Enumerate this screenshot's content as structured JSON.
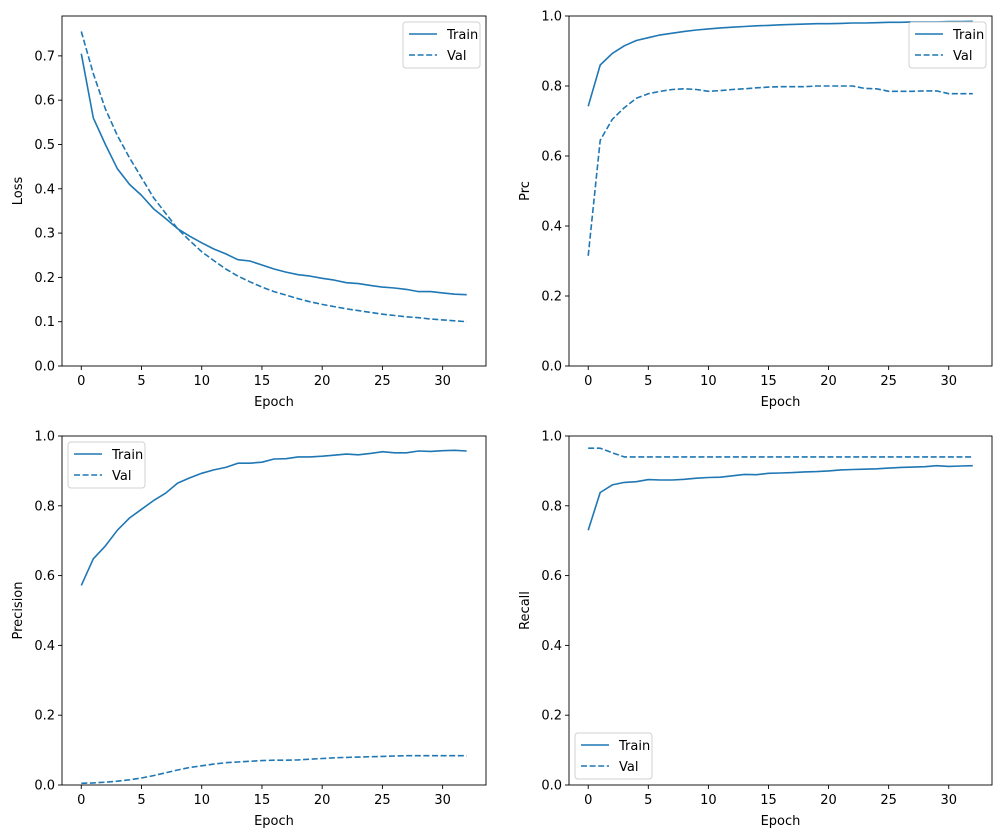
{
  "line_color": "#1f77b4",
  "chart_data": [
    {
      "type": "line",
      "xlabel": "Epoch",
      "ylabel": "Loss",
      "xlim": [
        -1.6,
        33.6
      ],
      "ylim": [
        0,
        0.79
      ],
      "xticks": [
        0,
        5,
        10,
        15,
        20,
        25,
        30
      ],
      "xtick_labels": [
        "0",
        "5",
        "10",
        "15",
        "20",
        "25",
        "30"
      ],
      "yticks": [
        0,
        0.1,
        0.2,
        0.3,
        0.4,
        0.5,
        0.6,
        0.7
      ],
      "ytick_labels": [
        "0.0",
        "0.1",
        "0.2",
        "0.3",
        "0.4",
        "0.5",
        "0.6",
        "0.7"
      ],
      "grid": false,
      "legend": "top-right",
      "series": [
        {
          "name": "Train",
          "style": "solid",
          "values": [
            0.705,
            0.56,
            0.5,
            0.445,
            0.41,
            0.385,
            0.355,
            0.333,
            0.31,
            0.293,
            0.278,
            0.264,
            0.253,
            0.24,
            0.237,
            0.228,
            0.219,
            0.212,
            0.206,
            0.203,
            0.198,
            0.194,
            0.188,
            0.186,
            0.182,
            0.178,
            0.176,
            0.173,
            0.168,
            0.168,
            0.165,
            0.162,
            0.161
          ]
        },
        {
          "name": "Val",
          "style": "dashed",
          "values": [
            0.755,
            0.66,
            0.58,
            0.52,
            0.47,
            0.425,
            0.38,
            0.345,
            0.31,
            0.283,
            0.258,
            0.238,
            0.219,
            0.203,
            0.19,
            0.178,
            0.168,
            0.16,
            0.152,
            0.145,
            0.139,
            0.134,
            0.129,
            0.125,
            0.121,
            0.117,
            0.114,
            0.111,
            0.109,
            0.106,
            0.104,
            0.102,
            0.1
          ]
        }
      ]
    },
    {
      "type": "line",
      "xlabel": "Epoch",
      "ylabel": "Prc",
      "xlim": [
        -1.6,
        33.6
      ],
      "ylim": [
        0,
        1
      ],
      "xticks": [
        0,
        5,
        10,
        15,
        20,
        25,
        30
      ],
      "xtick_labels": [
        "0",
        "5",
        "10",
        "15",
        "20",
        "25",
        "30"
      ],
      "yticks": [
        0,
        0.2,
        0.4,
        0.6,
        0.8,
        1.0
      ],
      "ytick_labels": [
        "0.0",
        "0.2",
        "0.4",
        "0.6",
        "0.8",
        "1.0"
      ],
      "grid": false,
      "legend": "top-right",
      "series": [
        {
          "name": "Train",
          "style": "solid",
          "values": [
            0.742,
            0.86,
            0.893,
            0.915,
            0.93,
            0.938,
            0.946,
            0.951,
            0.956,
            0.96,
            0.963,
            0.966,
            0.968,
            0.97,
            0.972,
            0.973,
            0.975,
            0.976,
            0.977,
            0.978,
            0.978,
            0.979,
            0.98,
            0.98,
            0.981,
            0.982,
            0.982,
            0.983,
            0.983,
            0.983,
            0.984,
            0.984,
            0.985
          ]
        },
        {
          "name": "Val",
          "style": "dashed",
          "values": [
            0.315,
            0.645,
            0.705,
            0.738,
            0.765,
            0.778,
            0.785,
            0.79,
            0.792,
            0.79,
            0.785,
            0.787,
            0.79,
            0.792,
            0.795,
            0.797,
            0.798,
            0.798,
            0.798,
            0.8,
            0.8,
            0.8,
            0.8,
            0.793,
            0.792,
            0.785,
            0.785,
            0.785,
            0.786,
            0.786,
            0.778,
            0.778,
            0.778
          ]
        }
      ]
    },
    {
      "type": "line",
      "xlabel": "Epoch",
      "ylabel": "Precision",
      "xlim": [
        -1.6,
        33.6
      ],
      "ylim": [
        0,
        1
      ],
      "xticks": [
        0,
        5,
        10,
        15,
        20,
        25,
        30
      ],
      "xtick_labels": [
        "0",
        "5",
        "10",
        "15",
        "20",
        "25",
        "30"
      ],
      "yticks": [
        0,
        0.2,
        0.4,
        0.6,
        0.8,
        1.0
      ],
      "ytick_labels": [
        "0.0",
        "0.2",
        "0.4",
        "0.6",
        "0.8",
        "1.0"
      ],
      "grid": false,
      "legend": "top-left",
      "series": [
        {
          "name": "Train",
          "style": "solid",
          "values": [
            0.572,
            0.648,
            0.685,
            0.73,
            0.765,
            0.79,
            0.815,
            0.836,
            0.865,
            0.88,
            0.893,
            0.903,
            0.91,
            0.922,
            0.922,
            0.925,
            0.934,
            0.935,
            0.94,
            0.94,
            0.942,
            0.945,
            0.948,
            0.946,
            0.95,
            0.955,
            0.952,
            0.952,
            0.957,
            0.956,
            0.958,
            0.959,
            0.957
          ]
        },
        {
          "name": "Val",
          "style": "dashed",
          "values": [
            0.005,
            0.006,
            0.008,
            0.011,
            0.015,
            0.02,
            0.027,
            0.035,
            0.043,
            0.05,
            0.055,
            0.06,
            0.064,
            0.066,
            0.068,
            0.07,
            0.071,
            0.071,
            0.072,
            0.074,
            0.076,
            0.078,
            0.079,
            0.08,
            0.081,
            0.082,
            0.083,
            0.084,
            0.084,
            0.084,
            0.084,
            0.084,
            0.084
          ]
        }
      ]
    },
    {
      "type": "line",
      "xlabel": "Epoch",
      "ylabel": "Recall",
      "xlim": [
        -1.6,
        33.6
      ],
      "ylim": [
        0,
        1
      ],
      "xticks": [
        0,
        5,
        10,
        15,
        20,
        25,
        30
      ],
      "xtick_labels": [
        "0",
        "5",
        "10",
        "15",
        "20",
        "25",
        "30"
      ],
      "yticks": [
        0,
        0.2,
        0.4,
        0.6,
        0.8,
        1.0
      ],
      "ytick_labels": [
        "0.0",
        "0.2",
        "0.4",
        "0.6",
        "0.8",
        "1.0"
      ],
      "grid": false,
      "legend": "bottom-left",
      "series": [
        {
          "name": "Train",
          "style": "solid",
          "values": [
            0.73,
            0.838,
            0.86,
            0.867,
            0.869,
            0.875,
            0.874,
            0.874,
            0.876,
            0.879,
            0.881,
            0.882,
            0.886,
            0.89,
            0.889,
            0.893,
            0.894,
            0.895,
            0.897,
            0.898,
            0.9,
            0.903,
            0.904,
            0.905,
            0.906,
            0.908,
            0.91,
            0.911,
            0.912,
            0.915,
            0.913,
            0.914,
            0.915
          ]
        },
        {
          "name": "Val",
          "style": "dashed",
          "values": [
            0.965,
            0.965,
            0.952,
            0.94,
            0.94,
            0.94,
            0.94,
            0.94,
            0.94,
            0.94,
            0.94,
            0.94,
            0.94,
            0.94,
            0.94,
            0.94,
            0.94,
            0.94,
            0.94,
            0.94,
            0.94,
            0.94,
            0.94,
            0.94,
            0.94,
            0.94,
            0.94,
            0.94,
            0.94,
            0.94,
            0.94,
            0.94,
            0.94
          ]
        }
      ]
    }
  ]
}
